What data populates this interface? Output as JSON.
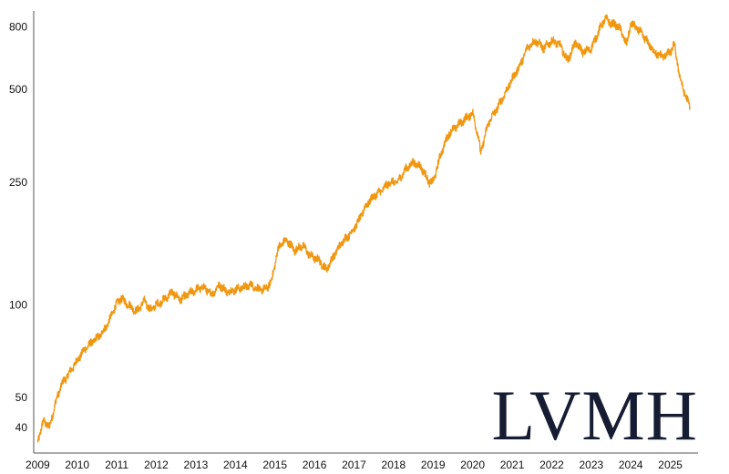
{
  "chart_data": {
    "type": "line",
    "title": "",
    "xlabel": "",
    "ylabel": "",
    "y_scale": "log",
    "ylim": [
      33,
      900
    ],
    "xlim": [
      2008.9,
      2025.7
    ],
    "x_ticks": [
      "2009",
      "2010",
      "2011",
      "2012",
      "2013",
      "2014",
      "2015",
      "2016",
      "2017",
      "2018",
      "2019",
      "2020",
      "2021",
      "2022",
      "2023",
      "2024",
      "2025"
    ],
    "y_ticks": [
      "40",
      "50",
      "100",
      "250",
      "500",
      "800"
    ],
    "grid": false,
    "legend": "none",
    "series": [
      {
        "color": "#f0960f",
        "x": [
          2009.0,
          2009.15,
          2009.3,
          2009.45,
          2009.6,
          2009.8,
          2010.0,
          2010.2,
          2010.4,
          2010.6,
          2010.8,
          2010.95,
          2011.1,
          2011.3,
          2011.5,
          2011.7,
          2011.85,
          2012.0,
          2012.2,
          2012.4,
          2012.6,
          2012.8,
          2013.0,
          2013.2,
          2013.4,
          2013.6,
          2013.8,
          2014.0,
          2014.2,
          2014.4,
          2014.6,
          2014.75,
          2014.9,
          2015.1,
          2015.3,
          2015.5,
          2015.7,
          2015.9,
          2016.1,
          2016.3,
          2016.5,
          2016.7,
          2016.9,
          2017.1,
          2017.3,
          2017.5,
          2017.7,
          2017.9,
          2018.1,
          2018.3,
          2018.5,
          2018.7,
          2018.9,
          2019.0,
          2019.2,
          2019.4,
          2019.6,
          2019.8,
          2020.0,
          2020.15,
          2020.2,
          2020.4,
          2020.6,
          2020.8,
          2021.0,
          2021.2,
          2021.4,
          2021.6,
          2021.8,
          2022.0,
          2022.2,
          2022.4,
          2022.6,
          2022.8,
          2023.0,
          2023.2,
          2023.35,
          2023.5,
          2023.7,
          2023.9,
          2024.0,
          2024.2,
          2024.4,
          2024.6,
          2024.8,
          2025.0,
          2025.1,
          2025.25,
          2025.4,
          2025.5
        ],
        "y": [
          36,
          42,
          40,
          48,
          55,
          60,
          66,
          72,
          76,
          80,
          88,
          98,
          105,
          100,
          95,
          103,
          96,
          100,
          104,
          110,
          104,
          108,
          112,
          114,
          108,
          116,
          110,
          112,
          114,
          116,
          112,
          112,
          118,
          155,
          162,
          150,
          156,
          144,
          140,
          130,
          145,
          160,
          170,
          185,
          210,
          225,
          235,
          250,
          250,
          275,
          290,
          280,
          250,
          250,
          310,
          360,
          380,
          400,
          420,
          350,
          310,
          390,
          430,
          480,
          540,
          600,
          690,
          720,
          680,
          720,
          700,
          620,
          710,
          660,
          680,
          780,
          850,
          820,
          800,
          700,
          820,
          780,
          720,
          660,
          640,
          660,
          700,
          540,
          470,
          440
        ]
      }
    ],
    "logo_text": "LVMH"
  }
}
